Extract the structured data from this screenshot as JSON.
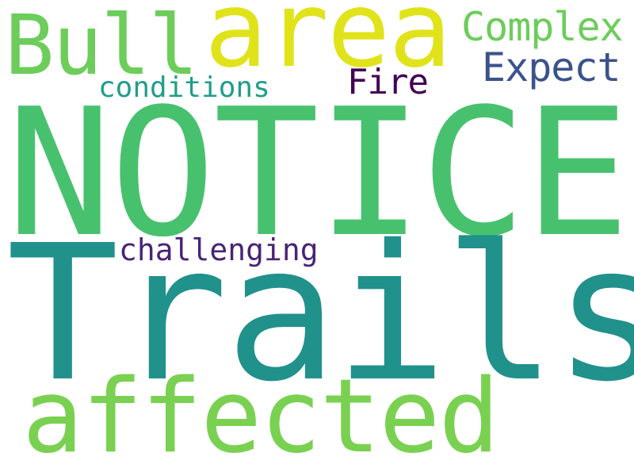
{
  "words": {
    "notice": {
      "text": "NOTICE",
      "color": "#48c16e"
    },
    "trails": {
      "text": "Trails",
      "color": "#21918c"
    },
    "affected": {
      "text": "affected",
      "color": "#7ad151"
    },
    "area": {
      "text": "area",
      "color": "#e0e31a"
    },
    "bull": {
      "text": "Bull",
      "color": "#6ccd5a"
    },
    "complex": {
      "text": "Complex",
      "color": "#6ccd5a"
    },
    "expect": {
      "text": "Expect",
      "color": "#3b528b"
    },
    "fire": {
      "text": "Fire",
      "color": "#440154"
    },
    "conditions": {
      "text": "conditions",
      "color": "#1f9e89"
    },
    "challenging": {
      "text": "challenging",
      "color": "#482475"
    }
  }
}
